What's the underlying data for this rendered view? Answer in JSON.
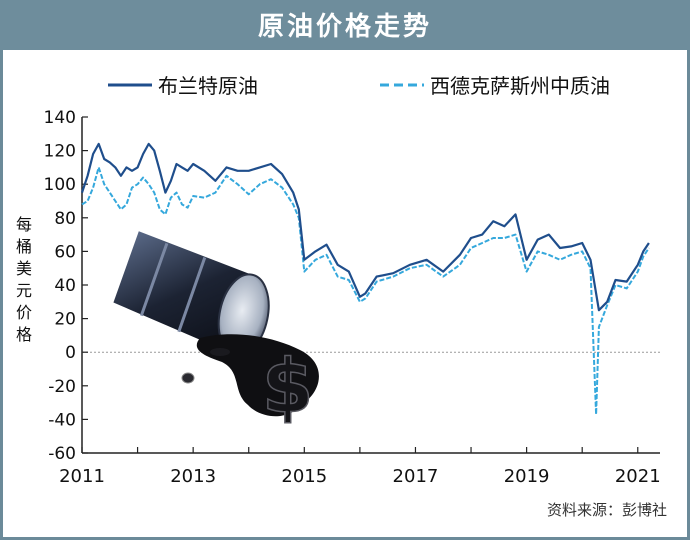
{
  "header": {
    "title": "原油价格走势"
  },
  "y_axis_title": "每桶美元价格",
  "source": "资料来源：彭博社",
  "colors": {
    "header_bg": "#6e8d9c",
    "brent": "#1f4e8c",
    "wti": "#35a8dc",
    "axis": "#222222"
  },
  "illustration": "oil-barrel-with-spilled-oil-dollar-sign",
  "chart_data": {
    "type": "line",
    "xlim": [
      2011,
      2021.4
    ],
    "ylim": [
      -60,
      140
    ],
    "x_ticks": [
      2011,
      2013,
      2015,
      2017,
      2019,
      2021
    ],
    "x_tick_labels": [
      "2011",
      "2013",
      "2015",
      "2017",
      "2019",
      "2021"
    ],
    "y_ticks": [
      -60,
      -40,
      -20,
      0,
      20,
      40,
      60,
      80,
      100,
      120,
      140
    ],
    "y_tick_labels": [
      "-60",
      "-40",
      "-20",
      "0",
      "20",
      "40",
      "60",
      "80",
      "100",
      "120",
      "140"
    ],
    "legend_position": "top",
    "series": [
      {
        "name": "布兰特原油",
        "style": "solid",
        "x": [
          2011.0,
          2011.1,
          2011.2,
          2011.3,
          2011.4,
          2011.5,
          2011.6,
          2011.7,
          2011.8,
          2011.9,
          2012.0,
          2012.1,
          2012.2,
          2012.3,
          2012.4,
          2012.5,
          2012.6,
          2012.7,
          2012.8,
          2012.9,
          2013.0,
          2013.2,
          2013.4,
          2013.6,
          2013.8,
          2014.0,
          2014.2,
          2014.4,
          2014.6,
          2014.8,
          2014.9,
          2015.0,
          2015.2,
          2015.4,
          2015.6,
          2015.8,
          2016.0,
          2016.1,
          2016.3,
          2016.6,
          2016.9,
          2017.2,
          2017.5,
          2017.8,
          2018.0,
          2018.2,
          2018.4,
          2018.6,
          2018.8,
          2019.0,
          2019.2,
          2019.4,
          2019.6,
          2019.8,
          2020.0,
          2020.15,
          2020.3,
          2020.45,
          2020.6,
          2020.8,
          2021.0,
          2021.1,
          2021.2
        ],
        "y": [
          95,
          105,
          118,
          124,
          115,
          113,
          110,
          105,
          110,
          108,
          110,
          118,
          124,
          120,
          108,
          95,
          102,
          112,
          110,
          108,
          112,
          108,
          102,
          110,
          108,
          108,
          110,
          112,
          106,
          95,
          85,
          55,
          60,
          64,
          52,
          48,
          33,
          35,
          45,
          47,
          52,
          55,
          48,
          58,
          68,
          70,
          78,
          75,
          82,
          55,
          67,
          70,
          62,
          63,
          65,
          55,
          25,
          30,
          43,
          42,
          52,
          60,
          65
        ]
      },
      {
        "name": "西德克萨斯州中质油",
        "style": "dashed",
        "x": [
          2011.0,
          2011.1,
          2011.2,
          2011.3,
          2011.4,
          2011.5,
          2011.6,
          2011.7,
          2011.8,
          2011.9,
          2012.0,
          2012.1,
          2012.2,
          2012.3,
          2012.4,
          2012.5,
          2012.6,
          2012.7,
          2012.8,
          2012.9,
          2013.0,
          2013.2,
          2013.4,
          2013.6,
          2013.8,
          2014.0,
          2014.2,
          2014.4,
          2014.6,
          2014.8,
          2014.9,
          2015.0,
          2015.2,
          2015.4,
          2015.6,
          2015.8,
          2016.0,
          2016.1,
          2016.3,
          2016.6,
          2016.9,
          2017.2,
          2017.5,
          2017.8,
          2018.0,
          2018.2,
          2018.4,
          2018.6,
          2018.8,
          2019.0,
          2019.2,
          2019.4,
          2019.6,
          2019.8,
          2020.0,
          2020.15,
          2020.25,
          2020.3,
          2020.45,
          2020.6,
          2020.8,
          2021.0,
          2021.1,
          2021.2
        ],
        "y": [
          88,
          90,
          98,
          110,
          100,
          95,
          90,
          85,
          88,
          98,
          100,
          104,
          100,
          95,
          85,
          82,
          92,
          95,
          88,
          86,
          93,
          92,
          95,
          105,
          100,
          94,
          100,
          103,
          98,
          88,
          80,
          48,
          55,
          58,
          45,
          43,
          30,
          32,
          42,
          45,
          50,
          52,
          45,
          52,
          62,
          65,
          68,
          68,
          70,
          48,
          60,
          58,
          55,
          58,
          60,
          50,
          -37,
          15,
          28,
          40,
          38,
          48,
          57,
          62
        ]
      }
    ]
  }
}
